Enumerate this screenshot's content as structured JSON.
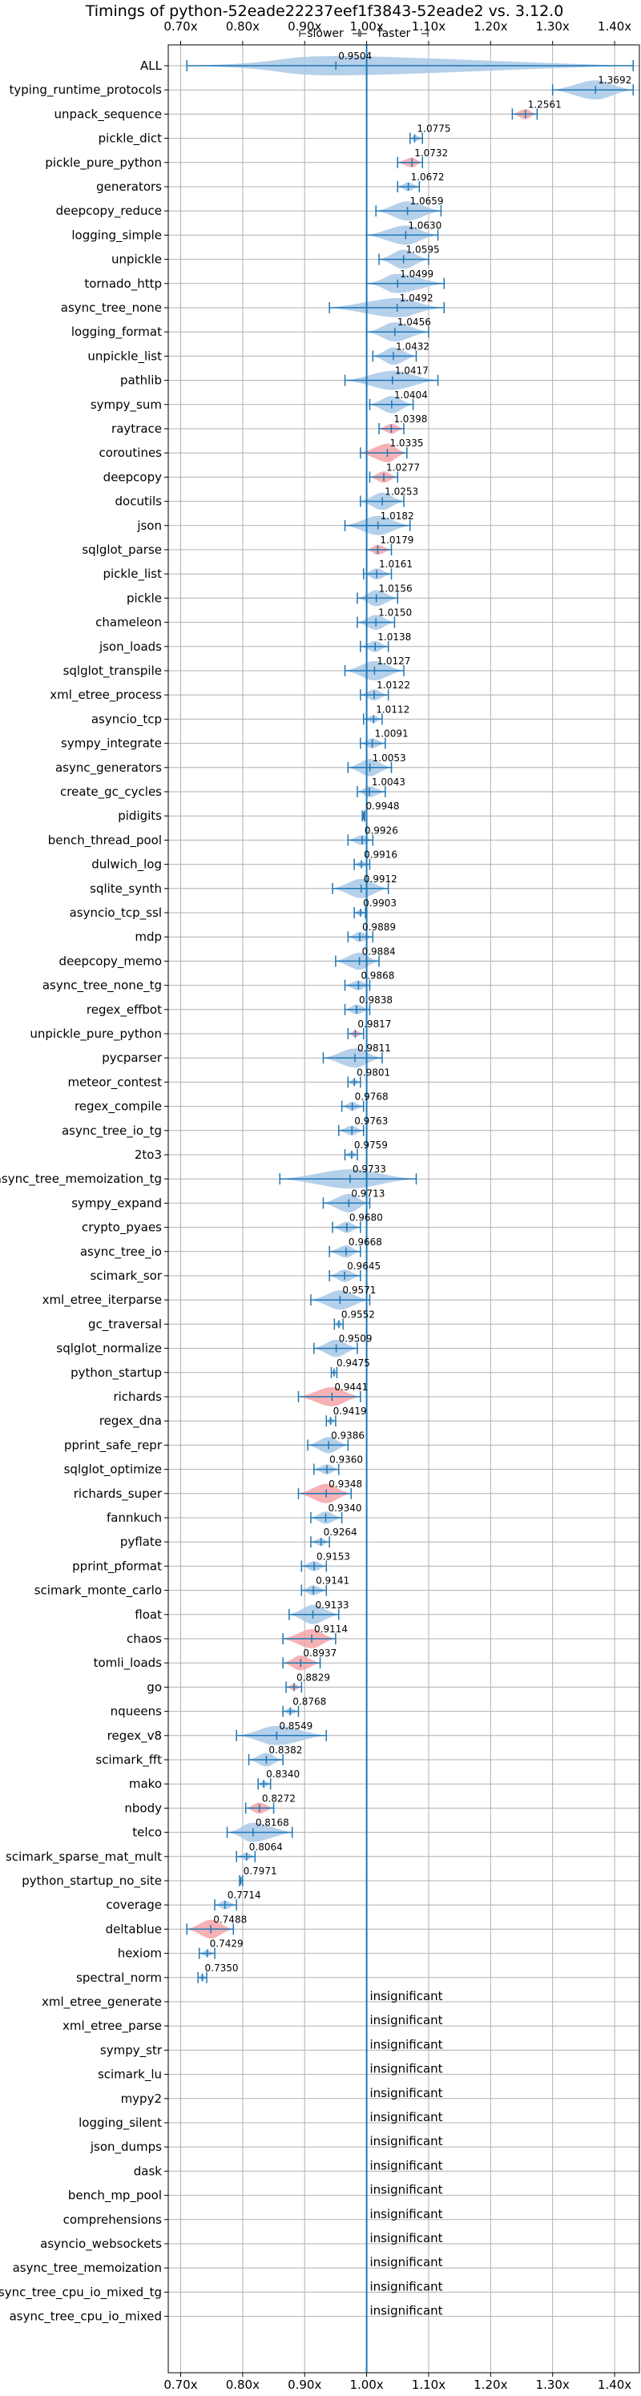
{
  "chart_data": {
    "type": "violin",
    "title": "Timings of python-52eade22237eef1f3843-52eade2 vs. 3.12.0",
    "direction_labels": {
      "slower": "slower",
      "faster": "faster"
    },
    "xlim": [
      0.68,
      1.44
    ],
    "xticks": [
      0.7,
      0.8,
      0.9,
      1.0,
      1.1,
      1.2,
      1.3,
      1.4
    ],
    "xtick_labels": [
      "0.70x",
      "0.80x",
      "0.90x",
      "1.00x",
      "1.10x",
      "1.20x",
      "1.30x",
      "1.40x"
    ],
    "reference_value": 1.0,
    "colors": {
      "normal": "#a8c8e6",
      "significant": "#f4a3a8",
      "line": "#1f77b4",
      "grid": "#b0b0b0"
    },
    "insignificant_text": "insignificant",
    "rows": [
      {
        "name": "ALL",
        "value": 0.9504,
        "label": "0.9504",
        "sig": false,
        "min": 0.71,
        "max": 1.43
      },
      {
        "name": "typing_runtime_protocols",
        "value": 1.3692,
        "label": "1.3692",
        "sig": false,
        "min": 1.3,
        "max": 1.43
      },
      {
        "name": "unpack_sequence",
        "value": 1.2561,
        "label": "1.2561",
        "sig": true,
        "min": 1.235,
        "max": 1.275
      },
      {
        "name": "pickle_dict",
        "value": 1.0775,
        "label": "1.0775",
        "sig": false,
        "min": 1.07,
        "max": 1.09
      },
      {
        "name": "pickle_pure_python",
        "value": 1.0732,
        "label": "1.0732",
        "sig": true,
        "min": 1.05,
        "max": 1.09
      },
      {
        "name": "generators",
        "value": 1.0672,
        "label": "1.0672",
        "sig": false,
        "min": 1.05,
        "max": 1.085
      },
      {
        "name": "deepcopy_reduce",
        "value": 1.0659,
        "label": "1.0659",
        "sig": false,
        "min": 1.015,
        "max": 1.12
      },
      {
        "name": "logging_simple",
        "value": 1.063,
        "label": "1.0630",
        "sig": false,
        "min": 1.0,
        "max": 1.115
      },
      {
        "name": "unpickle",
        "value": 1.0595,
        "label": "1.0595",
        "sig": false,
        "min": 1.02,
        "max": 1.1
      },
      {
        "name": "tornado_http",
        "value": 1.0499,
        "label": "1.0499",
        "sig": false,
        "min": 1.0,
        "max": 1.125
      },
      {
        "name": "async_tree_none",
        "value": 1.0492,
        "label": "1.0492",
        "sig": false,
        "min": 0.94,
        "max": 1.125
      },
      {
        "name": "logging_format",
        "value": 1.0456,
        "label": "1.0456",
        "sig": false,
        "min": 1.0,
        "max": 1.1
      },
      {
        "name": "unpickle_list",
        "value": 1.0432,
        "label": "1.0432",
        "sig": false,
        "min": 1.01,
        "max": 1.08
      },
      {
        "name": "pathlib",
        "value": 1.0417,
        "label": "1.0417",
        "sig": false,
        "min": 0.965,
        "max": 1.115
      },
      {
        "name": "sympy_sum",
        "value": 1.0404,
        "label": "1.0404",
        "sig": false,
        "min": 1.005,
        "max": 1.075
      },
      {
        "name": "raytrace",
        "value": 1.0398,
        "label": "1.0398",
        "sig": true,
        "min": 1.02,
        "max": 1.06
      },
      {
        "name": "coroutines",
        "value": 1.0335,
        "label": "1.0335",
        "sig": true,
        "min": 0.99,
        "max": 1.065
      },
      {
        "name": "deepcopy",
        "value": 1.0277,
        "label": "1.0277",
        "sig": true,
        "min": 1.005,
        "max": 1.05
      },
      {
        "name": "docutils",
        "value": 1.0253,
        "label": "1.0253",
        "sig": false,
        "min": 0.99,
        "max": 1.06
      },
      {
        "name": "json",
        "value": 1.0182,
        "label": "1.0182",
        "sig": false,
        "min": 0.965,
        "max": 1.07
      },
      {
        "name": "sqlglot_parse",
        "value": 1.0179,
        "label": "1.0179",
        "sig": true,
        "min": 1.0,
        "max": 1.04
      },
      {
        "name": "pickle_list",
        "value": 1.0161,
        "label": "1.0161",
        "sig": false,
        "min": 0.995,
        "max": 1.04
      },
      {
        "name": "pickle",
        "value": 1.0156,
        "label": "1.0156",
        "sig": false,
        "min": 0.985,
        "max": 1.05
      },
      {
        "name": "chameleon",
        "value": 1.015,
        "label": "1.0150",
        "sig": false,
        "min": 0.985,
        "max": 1.045
      },
      {
        "name": "json_loads",
        "value": 1.0138,
        "label": "1.0138",
        "sig": false,
        "min": 0.99,
        "max": 1.035
      },
      {
        "name": "sqlglot_transpile",
        "value": 1.0127,
        "label": "1.0127",
        "sig": false,
        "min": 0.965,
        "max": 1.06
      },
      {
        "name": "xml_etree_process",
        "value": 1.0122,
        "label": "1.0122",
        "sig": false,
        "min": 0.99,
        "max": 1.035
      },
      {
        "name": "asyncio_tcp",
        "value": 1.0112,
        "label": "1.0112",
        "sig": false,
        "min": 0.995,
        "max": 1.025
      },
      {
        "name": "sympy_integrate",
        "value": 1.0091,
        "label": "1.0091",
        "sig": false,
        "min": 0.99,
        "max": 1.03
      },
      {
        "name": "async_generators",
        "value": 1.0053,
        "label": "1.0053",
        "sig": false,
        "min": 0.97,
        "max": 1.04
      },
      {
        "name": "create_gc_cycles",
        "value": 1.0043,
        "label": "1.0043",
        "sig": false,
        "min": 0.985,
        "max": 1.03
      },
      {
        "name": "pidigits",
        "value": 0.9948,
        "label": "0.9948",
        "sig": false,
        "min": 0.993,
        "max": 0.997
      },
      {
        "name": "bench_thread_pool",
        "value": 0.9926,
        "label": "0.9926",
        "sig": false,
        "min": 0.97,
        "max": 1.01
      },
      {
        "name": "dulwich_log",
        "value": 0.9916,
        "label": "0.9916",
        "sig": false,
        "min": 0.98,
        "max": 1.005
      },
      {
        "name": "sqlite_synth",
        "value": 0.9912,
        "label": "0.9912",
        "sig": false,
        "min": 0.945,
        "max": 1.035
      },
      {
        "name": "asyncio_tcp_ssl",
        "value": 0.9903,
        "label": "0.9903",
        "sig": false,
        "min": 0.98,
        "max": 0.998
      },
      {
        "name": "mdp",
        "value": 0.9889,
        "label": "0.9889",
        "sig": false,
        "min": 0.97,
        "max": 1.01
      },
      {
        "name": "deepcopy_memo",
        "value": 0.9884,
        "label": "0.9884",
        "sig": false,
        "min": 0.95,
        "max": 1.02
      },
      {
        "name": "async_tree_none_tg",
        "value": 0.9868,
        "label": "0.9868",
        "sig": false,
        "min": 0.965,
        "max": 1.005
      },
      {
        "name": "regex_effbot",
        "value": 0.9838,
        "label": "0.9838",
        "sig": false,
        "min": 0.965,
        "max": 1.005
      },
      {
        "name": "unpickle_pure_python",
        "value": 0.9817,
        "label": "0.9817",
        "sig": true,
        "min": 0.97,
        "max": 0.995
      },
      {
        "name": "pycparser",
        "value": 0.9811,
        "label": "0.9811",
        "sig": false,
        "min": 0.93,
        "max": 1.025
      },
      {
        "name": "meteor_contest",
        "value": 0.9801,
        "label": "0.9801",
        "sig": false,
        "min": 0.97,
        "max": 0.99
      },
      {
        "name": "regex_compile",
        "value": 0.9768,
        "label": "0.9768",
        "sig": false,
        "min": 0.96,
        "max": 0.995
      },
      {
        "name": "async_tree_io_tg",
        "value": 0.9763,
        "label": "0.9763",
        "sig": false,
        "min": 0.955,
        "max": 0.995
      },
      {
        "name": "2to3",
        "value": 0.9759,
        "label": "0.9759",
        "sig": false,
        "min": 0.965,
        "max": 0.985
      },
      {
        "name": "async_tree_memoization_tg",
        "value": 0.9733,
        "label": "0.9733",
        "sig": false,
        "min": 0.86,
        "max": 1.08
      },
      {
        "name": "sympy_expand",
        "value": 0.9713,
        "label": "0.9713",
        "sig": false,
        "min": 0.93,
        "max": 1.005
      },
      {
        "name": "crypto_pyaes",
        "value": 0.968,
        "label": "0.9680",
        "sig": false,
        "min": 0.945,
        "max": 0.99
      },
      {
        "name": "async_tree_io",
        "value": 0.9668,
        "label": "0.9668",
        "sig": false,
        "min": 0.94,
        "max": 0.99
      },
      {
        "name": "scimark_sor",
        "value": 0.9645,
        "label": "0.9645",
        "sig": false,
        "min": 0.94,
        "max": 0.99
      },
      {
        "name": "xml_etree_iterparse",
        "value": 0.9571,
        "label": "0.9571",
        "sig": false,
        "min": 0.91,
        "max": 1.005
      },
      {
        "name": "gc_traversal",
        "value": 0.9552,
        "label": "0.9552",
        "sig": false,
        "min": 0.948,
        "max": 0.962
      },
      {
        "name": "sqlglot_normalize",
        "value": 0.9509,
        "label": "0.9509",
        "sig": false,
        "min": 0.915,
        "max": 0.985
      },
      {
        "name": "python_startup",
        "value": 0.9475,
        "label": "0.9475",
        "sig": false,
        "min": 0.943,
        "max": 0.952
      },
      {
        "name": "richards",
        "value": 0.9441,
        "label": "0.9441",
        "sig": true,
        "min": 0.89,
        "max": 0.99
      },
      {
        "name": "regex_dna",
        "value": 0.9419,
        "label": "0.9419",
        "sig": false,
        "min": 0.935,
        "max": 0.95
      },
      {
        "name": "pprint_safe_repr",
        "value": 0.9386,
        "label": "0.9386",
        "sig": false,
        "min": 0.905,
        "max": 0.97
      },
      {
        "name": "sqlglot_optimize",
        "value": 0.936,
        "label": "0.9360",
        "sig": false,
        "min": 0.915,
        "max": 0.955
      },
      {
        "name": "richards_super",
        "value": 0.9348,
        "label": "0.9348",
        "sig": true,
        "min": 0.89,
        "max": 0.975
      },
      {
        "name": "fannkuch",
        "value": 0.934,
        "label": "0.9340",
        "sig": false,
        "min": 0.91,
        "max": 0.96
      },
      {
        "name": "pyflate",
        "value": 0.9264,
        "label": "0.9264",
        "sig": false,
        "min": 0.91,
        "max": 0.94
      },
      {
        "name": "pprint_pformat",
        "value": 0.9153,
        "label": "0.9153",
        "sig": false,
        "min": 0.895,
        "max": 0.935
      },
      {
        "name": "scimark_monte_carlo",
        "value": 0.9141,
        "label": "0.9141",
        "sig": false,
        "min": 0.895,
        "max": 0.935
      },
      {
        "name": "float",
        "value": 0.9133,
        "label": "0.9133",
        "sig": false,
        "min": 0.875,
        "max": 0.955
      },
      {
        "name": "chaos",
        "value": 0.9114,
        "label": "0.9114",
        "sig": true,
        "min": 0.865,
        "max": 0.95
      },
      {
        "name": "tomli_loads",
        "value": 0.8937,
        "label": "0.8937",
        "sig": true,
        "min": 0.865,
        "max": 0.925
      },
      {
        "name": "go",
        "value": 0.8829,
        "label": "0.8829",
        "sig": true,
        "min": 0.87,
        "max": 0.895
      },
      {
        "name": "nqueens",
        "value": 0.8768,
        "label": "0.8768",
        "sig": false,
        "min": 0.865,
        "max": 0.89
      },
      {
        "name": "regex_v8",
        "value": 0.8549,
        "label": "0.8549",
        "sig": false,
        "min": 0.79,
        "max": 0.935
      },
      {
        "name": "scimark_fft",
        "value": 0.8382,
        "label": "0.8382",
        "sig": false,
        "min": 0.81,
        "max": 0.865
      },
      {
        "name": "mako",
        "value": 0.834,
        "label": "0.8340",
        "sig": false,
        "min": 0.825,
        "max": 0.845
      },
      {
        "name": "nbody",
        "value": 0.8272,
        "label": "0.8272",
        "sig": true,
        "min": 0.805,
        "max": 0.85
      },
      {
        "name": "telco",
        "value": 0.8168,
        "label": "0.8168",
        "sig": false,
        "min": 0.775,
        "max": 0.88
      },
      {
        "name": "scimark_sparse_mat_mult",
        "value": 0.8064,
        "label": "0.8064",
        "sig": false,
        "min": 0.79,
        "max": 0.82
      },
      {
        "name": "python_startup_no_site",
        "value": 0.7971,
        "label": "0.7971",
        "sig": false,
        "min": 0.795,
        "max": 0.8
      },
      {
        "name": "coverage",
        "value": 0.7714,
        "label": "0.7714",
        "sig": false,
        "min": 0.755,
        "max": 0.79
      },
      {
        "name": "deltablue",
        "value": 0.7488,
        "label": "0.7488",
        "sig": true,
        "min": 0.71,
        "max": 0.785
      },
      {
        "name": "hexiom",
        "value": 0.7429,
        "label": "0.7429",
        "sig": false,
        "min": 0.73,
        "max": 0.755
      },
      {
        "name": "spectral_norm",
        "value": 0.735,
        "label": "0.7350",
        "sig": false,
        "min": 0.728,
        "max": 0.742
      },
      {
        "name": "xml_etree_generate",
        "insignificant": true
      },
      {
        "name": "xml_etree_parse",
        "insignificant": true
      },
      {
        "name": "sympy_str",
        "insignificant": true
      },
      {
        "name": "scimark_lu",
        "insignificant": true
      },
      {
        "name": "mypy2",
        "insignificant": true
      },
      {
        "name": "logging_silent",
        "insignificant": true
      },
      {
        "name": "json_dumps",
        "insignificant": true
      },
      {
        "name": "dask",
        "insignificant": true
      },
      {
        "name": "bench_mp_pool",
        "insignificant": true
      },
      {
        "name": "comprehensions",
        "insignificant": true
      },
      {
        "name": "asyncio_websockets",
        "insignificant": true
      },
      {
        "name": "async_tree_memoization",
        "insignificant": true
      },
      {
        "name": "async_tree_cpu_io_mixed_tg",
        "insignificant": true
      },
      {
        "name": "async_tree_cpu_io_mixed",
        "insignificant": true
      }
    ]
  }
}
